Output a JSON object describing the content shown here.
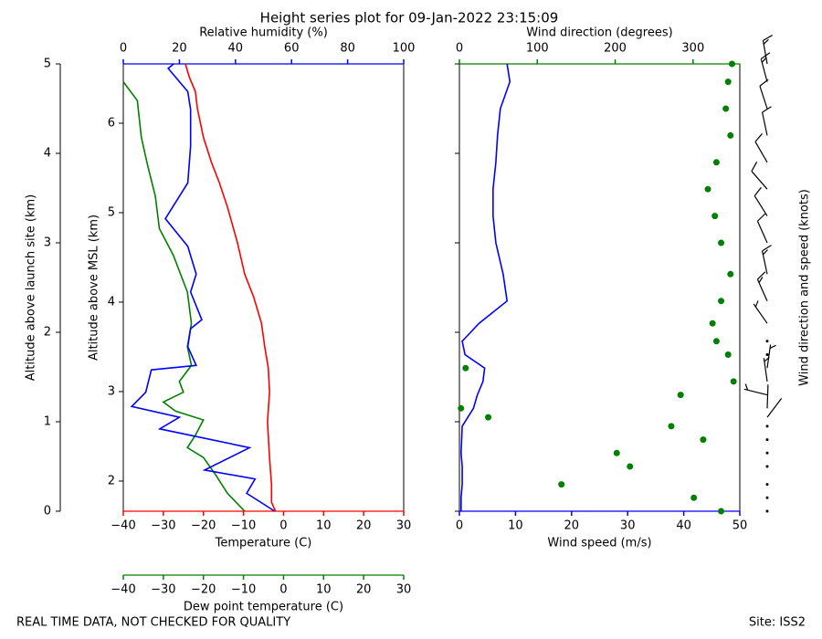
{
  "chart_data": {
    "type": "profile",
    "title": "Height series plot for 09-Jan-2022 23:15:09",
    "footer_left": "REAL TIME DATA, NOT CHECKED FOR QUALITY",
    "footer_right": "Site: ISS2",
    "y_label": "Altitude above launch site (km)",
    "ylim": [
      0,
      5
    ],
    "yticks": [
      0,
      1,
      2,
      3,
      4,
      5
    ],
    "y_msl_label": "Altitude above MSL (km)",
    "y_msl_lim": [
      1.663,
      6.663
    ],
    "y_msl_ticks": [
      2,
      3,
      4,
      5,
      6
    ],
    "temperature": {
      "label": "Temperature (C)",
      "color": "#ff0000",
      "xlim": [
        -40,
        30
      ],
      "xticks": [
        {
          "value": -40,
          "label": "−40"
        },
        {
          "value": -30,
          "label": "−30"
        },
        {
          "value": -20,
          "label": "−20"
        },
        {
          "value": -10,
          "label": "−10"
        },
        0,
        10,
        20,
        30
      ],
      "altitude": [
        0,
        0.1,
        0.3,
        0.6,
        1.0,
        1.33,
        1.6,
        1.84,
        2.1,
        2.4,
        2.65,
        3.0,
        3.4,
        3.67,
        3.9,
        4.18,
        4.5,
        4.69,
        4.85,
        5.0
      ],
      "values": [
        -2,
        -3,
        -3,
        -3.5,
        -4,
        -3.5,
        -3.8,
        -4.7,
        -5.5,
        -7.5,
        -9.7,
        -11.5,
        -14,
        -16,
        -18,
        -20,
        -21.5,
        -22,
        -23.5,
        -24.5
      ]
    },
    "dewpoint": {
      "label": "Dew point temperature (C)",
      "color": "#008000",
      "xlim": [
        -40,
        30
      ],
      "xticks": [
        {
          "value": -40,
          "label": "−40"
        },
        {
          "value": -30,
          "label": "−30"
        },
        {
          "value": -20,
          "label": "−20"
        },
        {
          "value": -10,
          "label": "−10"
        },
        0,
        10,
        20,
        30
      ],
      "altitude": [
        0,
        0.2,
        0.41,
        0.6,
        0.71,
        0.85,
        1.02,
        1.12,
        1.22,
        1.33,
        1.45,
        1.63,
        1.84,
        2.1,
        2.45,
        2.86,
        3.16,
        3.52,
        3.88,
        4.18,
        4.59,
        4.8
      ],
      "values": [
        -9.7,
        -14,
        -17,
        -20,
        -24,
        -22,
        -20,
        -27,
        -30,
        -25,
        -26,
        -23,
        -24,
        -23,
        -24,
        -27.5,
        -31,
        -32,
        -34,
        -35.5,
        -36.5,
        -40
      ]
    },
    "humidity": {
      "label": "Relative humidity (%)",
      "color": "#0000ff",
      "xlim": [
        0,
        100
      ],
      "xticks": [
        0,
        20,
        40,
        60,
        80,
        100
      ],
      "altitude": [
        0,
        0.2,
        0.36,
        0.46,
        0.71,
        0.92,
        1.05,
        1.17,
        1.33,
        1.58,
        1.63,
        1.84,
        2.04,
        2.14,
        2.45,
        2.65,
        2.96,
        3.27,
        3.67,
        4.08,
        4.49,
        4.69,
        4.95,
        5.0
      ],
      "values": [
        54,
        44,
        47,
        29,
        45,
        13,
        20,
        3,
        8,
        10,
        26,
        23,
        24,
        28,
        24,
        26,
        23,
        15,
        23,
        24,
        24,
        23,
        16,
        18
      ]
    },
    "wind": {
      "speed_label": "Wind speed (m/s)",
      "speed_color": "#0000ff",
      "speed_lim": [
        0,
        50
      ],
      "speed_ticks": [
        0,
        10,
        20,
        30,
        40,
        50
      ],
      "direction_label": "Wind direction (degrees)",
      "direction_color": "#008000",
      "direction_lim": [
        0,
        360
      ],
      "direction_ticks": [
        0,
        100,
        200,
        300
      ],
      "barb_label": "Wind direction and speed (knots)",
      "altitude": [
        0,
        0.15,
        0.3,
        0.5,
        0.65,
        0.8,
        0.95,
        1.05,
        1.15,
        1.3,
        1.45,
        1.6,
        1.75,
        1.9,
        2.1,
        2.35,
        2.65,
        3.0,
        3.3,
        3.6,
        3.9,
        4.2,
        4.5,
        4.8,
        5.0
      ],
      "speed": [
        0.3,
        0.3,
        0.5,
        0.5,
        0.3,
        0.4,
        0.5,
        1.5,
        2.5,
        3.2,
        4.2,
        4.5,
        1.0,
        0.5,
        3.5,
        8.5,
        7.8,
        6.5,
        6,
        6,
        6.5,
        6.8,
        7.3,
        9,
        8.5
      ],
      "direction": [
        336,
        301,
        131,
        219,
        202,
        313,
        272,
        37,
        2,
        284,
        352,
        8,
        345,
        330,
        325,
        336,
        348,
        336,
        328,
        319,
        330,
        348,
        342,
        345,
        350
      ]
    }
  }
}
